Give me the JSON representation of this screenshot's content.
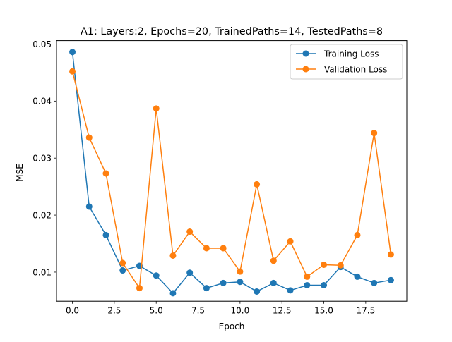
{
  "chart_data": {
    "type": "line",
    "title": "A1: Layers:2, Epochs=20, TrainedPaths=14, TestedPaths=8",
    "xlabel": "Epoch",
    "ylabel": "MSE",
    "xlim": [
      -0.95,
      19.95
    ],
    "ylim": [
      0.0049,
      0.0506
    ],
    "xticks": [
      0.0,
      2.5,
      5.0,
      7.5,
      10.0,
      12.5,
      15.0,
      17.5
    ],
    "xtick_labels": [
      "0.0",
      "2.5",
      "5.0",
      "7.5",
      "10.0",
      "12.5",
      "15.0",
      "17.5"
    ],
    "yticks": [
      0.01,
      0.02,
      0.03,
      0.04,
      0.05
    ],
    "ytick_labels": [
      "0.01",
      "0.02",
      "0.03",
      "0.04",
      "0.05"
    ],
    "grid": false,
    "legend_position": "top-right",
    "x": [
      0,
      1,
      2,
      3,
      4,
      5,
      6,
      7,
      8,
      9,
      10,
      11,
      12,
      13,
      14,
      15,
      16,
      17,
      18,
      19
    ],
    "series": [
      {
        "name": "Training Loss",
        "color": "#1f77b4",
        "values": [
          0.0486,
          0.0215,
          0.0165,
          0.0103,
          0.0111,
          0.0094,
          0.0063,
          0.0099,
          0.0072,
          0.0081,
          0.0083,
          0.0066,
          0.0081,
          0.0068,
          0.0077,
          0.0077,
          0.0109,
          0.0092,
          0.0081,
          0.0086
        ]
      },
      {
        "name": "Validation Loss",
        "color": "#ff7f0e",
        "values": [
          0.0452,
          0.0336,
          0.0273,
          0.0116,
          0.0072,
          0.0387,
          0.0129,
          0.0171,
          0.0142,
          0.0142,
          0.0101,
          0.0254,
          0.012,
          0.0154,
          0.0092,
          0.0113,
          0.0112,
          0.0165,
          0.0344,
          0.0131
        ]
      }
    ]
  }
}
